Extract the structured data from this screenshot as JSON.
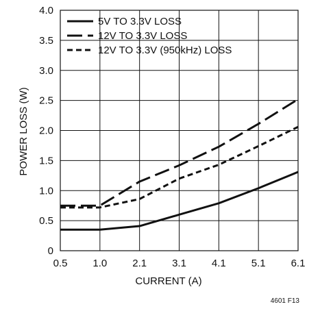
{
  "chart_data": {
    "type": "line",
    "xlabel": "CURRENT (A)",
    "ylabel": "POWER LOSS (W)",
    "figure_id": "4601 F13",
    "x_ticks": [
      "0.5",
      "1.0",
      "2.1",
      "3.1",
      "4.1",
      "5.1",
      "6.1"
    ],
    "y_ticks": [
      "0",
      "0.5",
      "1.0",
      "1.5",
      "2.0",
      "2.5",
      "3.0",
      "3.5",
      "4.0"
    ],
    "x_scale": "category-positions",
    "ylim": [
      0,
      4.0
    ],
    "grid": true,
    "legend_position": "top-left",
    "series": [
      {
        "name": "5V TO 3.3V LOSS",
        "style": "solid",
        "x": [
          "0.5",
          "1.0",
          "2.1",
          "3.1",
          "4.1",
          "5.1",
          "6.1"
        ],
        "values": [
          0.35,
          0.35,
          0.41,
          0.6,
          0.79,
          1.04,
          1.31
        ]
      },
      {
        "name": "12V TO 3.3V LOSS",
        "style": "long-dash",
        "x": [
          "0.5",
          "1.0",
          "2.1",
          "3.1",
          "4.1",
          "5.1",
          "6.1"
        ],
        "values": [
          0.75,
          0.75,
          1.15,
          1.42,
          1.73,
          2.11,
          2.52
        ]
      },
      {
        "name": "12V TO 3.3V (950kHz) LOSS",
        "style": "short-dash",
        "x": [
          "0.5",
          "1.0",
          "2.1",
          "3.1",
          "4.1",
          "5.1",
          "6.1"
        ],
        "values": [
          0.72,
          0.72,
          0.86,
          1.2,
          1.43,
          1.74,
          2.06
        ]
      }
    ],
    "colors": {
      "line": "#111111",
      "grid": "#111111",
      "background": "#ffffff"
    }
  }
}
